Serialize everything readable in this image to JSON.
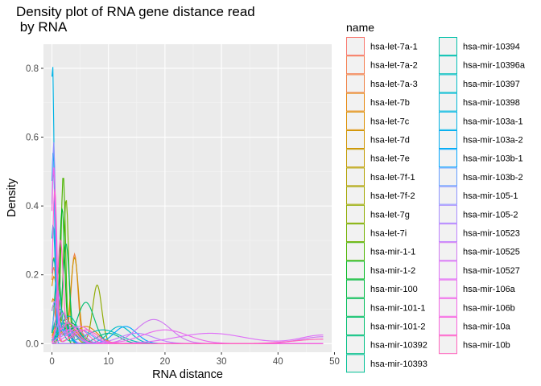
{
  "chart_data": {
    "type": "line",
    "title_line1": "Density plot of RNA gene distance read",
    "title_line2": " by RNA",
    "xlabel": "RNA distance",
    "ylabel": "Density",
    "xlim": [
      -1.5,
      49.5
    ],
    "ylim": [
      -0.025,
      0.87
    ],
    "x_ticks": [
      0,
      10,
      20,
      30,
      40,
      50
    ],
    "x_tick_labels": [
      "0",
      "10",
      "20",
      "30",
      "40",
      "50"
    ],
    "y_ticks": [
      0.0,
      0.2,
      0.4,
      0.6,
      0.8
    ],
    "y_tick_labels": [
      "0.0",
      "0.2",
      "0.4",
      "0.6",
      "0.8"
    ],
    "grid": true,
    "legend_position": "right",
    "legend_title": "name",
    "series": [
      {
        "name": "hsa-let-7a-1",
        "color": "#F8766D",
        "peaks": [
          [
            1.2,
            0.05,
            0.8
          ],
          [
            4,
            0.04,
            1.5
          ]
        ]
      },
      {
        "name": "hsa-let-7a-2",
        "color": "#F47D4F",
        "peaks": [
          [
            0.3,
            0.21,
            0.5
          ],
          [
            3,
            0.03,
            2
          ]
        ]
      },
      {
        "name": "hsa-let-7a-3",
        "color": "#EE8043",
        "peaks": [
          [
            4,
            0.26,
            0.6
          ],
          [
            1.5,
            0.04,
            0.8
          ]
        ]
      },
      {
        "name": "hsa-let-7b",
        "color": "#E5860D",
        "peaks": [
          [
            0.2,
            0.13,
            0.5
          ],
          [
            6,
            0.05,
            2
          ]
        ]
      },
      {
        "name": "hsa-let-7c",
        "color": "#DB8E00",
        "peaks": [
          [
            0.3,
            0.18,
            0.6
          ],
          [
            2,
            0.06,
            1
          ]
        ]
      },
      {
        "name": "hsa-let-7d",
        "color": "#CF9400",
        "peaks": [
          [
            4,
            0.25,
            0.7
          ],
          [
            1,
            0.05,
            0.8
          ]
        ]
      },
      {
        "name": "hsa-let-7e",
        "color": "#C19A00",
        "peaks": [
          [
            2.5,
            0.07,
            1.2
          ],
          [
            0.2,
            0.1,
            0.4
          ]
        ]
      },
      {
        "name": "hsa-let-7f-1",
        "color": "#B2A000",
        "peaks": [
          [
            0.3,
            0.24,
            0.5
          ],
          [
            3,
            0.05,
            1.5
          ]
        ]
      },
      {
        "name": "hsa-let-7f-2",
        "color": "#A3A500",
        "peaks": [
          [
            1.5,
            0.07,
            1.2
          ]
        ]
      },
      {
        "name": "hsa-let-7g",
        "color": "#8EAB00",
        "peaks": [
          [
            8,
            0.17,
            0.8
          ],
          [
            3,
            0.04,
            1.5
          ]
        ]
      },
      {
        "name": "hsa-let-7i",
        "color": "#72B000",
        "peaks": [
          [
            2.5,
            0.42,
            0.45
          ],
          [
            0.5,
            0.05,
            0.6
          ]
        ]
      },
      {
        "name": "hsa-mir-1-1",
        "color": "#4CB400",
        "peaks": [
          [
            2,
            0.49,
            0.4
          ]
        ]
      },
      {
        "name": "hsa-mir-1-2",
        "color": "#00B81F",
        "peaks": [
          [
            1.8,
            0.39,
            0.45
          ],
          [
            4,
            0.05,
            1
          ]
        ]
      },
      {
        "name": "hsa-mir-100",
        "color": "#00BA42",
        "peaks": [
          [
            1,
            0.22,
            0.5
          ],
          [
            3.5,
            0.06,
            1.2
          ]
        ]
      },
      {
        "name": "hsa-mir-101-1",
        "color": "#00BC5A",
        "peaks": [
          [
            2.5,
            0.29,
            0.6
          ],
          [
            0.5,
            0.05,
            0.5
          ]
        ]
      },
      {
        "name": "hsa-mir-101-2",
        "color": "#00BE70",
        "peaks": [
          [
            6,
            0.12,
            1.5
          ],
          [
            1.5,
            0.06,
            0.8
          ]
        ]
      },
      {
        "name": "hsa-mir-10392",
        "color": "#00BF84",
        "peaks": [
          [
            1.5,
            0.1,
            1
          ],
          [
            10,
            0.03,
            2
          ]
        ]
      },
      {
        "name": "hsa-mir-10393",
        "color": "#00C096",
        "peaks": [
          [
            0.3,
            0.23,
            0.5
          ],
          [
            2.5,
            0.05,
            1.5
          ]
        ]
      },
      {
        "name": "hsa-mir-10394",
        "color": "#00C0A8",
        "peaks": [
          [
            3,
            0.08,
            1.5
          ]
        ]
      },
      {
        "name": "hsa-mir-10396a",
        "color": "#00BFB8",
        "peaks": [
          [
            9,
            0.04,
            3
          ],
          [
            1,
            0.07,
            0.8
          ]
        ]
      },
      {
        "name": "hsa-mir-10397",
        "color": "#00BCC8",
        "peaks": [
          [
            12,
            0.05,
            2
          ],
          [
            2,
            0.06,
            1
          ]
        ]
      },
      {
        "name": "hsa-mir-10398",
        "color": "#00B8D7",
        "peaks": [
          [
            0.2,
            0.34,
            0.4
          ],
          [
            3,
            0.04,
            1.5
          ]
        ]
      },
      {
        "name": "hsa-mir-103a-1",
        "color": "#00B3E5",
        "peaks": [
          [
            0.1,
            0.82,
            0.3
          ]
        ]
      },
      {
        "name": "hsa-mir-103a-2",
        "color": "#00ACF2",
        "peaks": [
          [
            0.2,
            0.55,
            0.35
          ],
          [
            2,
            0.04,
            1
          ]
        ]
      },
      {
        "name": "hsa-mir-103b-1",
        "color": "#00A5FF",
        "peaks": [
          [
            13,
            0.05,
            2
          ],
          [
            2,
            0.04,
            1
          ]
        ]
      },
      {
        "name": "hsa-mir-103b-2",
        "color": "#619CFF",
        "peaks": [
          [
            1,
            0.15,
            0.6
          ],
          [
            5,
            0.04,
            2
          ]
        ]
      },
      {
        "name": "hsa-mir-105-1",
        "color": "#8B93FF",
        "peaks": [
          [
            0.3,
            0.58,
            0.35
          ],
          [
            3,
            0.03,
            1.5
          ]
        ]
      },
      {
        "name": "hsa-mir-105-2",
        "color": "#A88BFF",
        "peaks": [
          [
            0.5,
            0.12,
            0.7
          ],
          [
            4,
            0.05,
            1.5
          ]
        ]
      },
      {
        "name": "hsa-mir-10523",
        "color": "#BE80FF",
        "peaks": [
          [
            2,
            0.09,
            1
          ],
          [
            15,
            0.03,
            3
          ]
        ]
      },
      {
        "name": "hsa-mir-10525",
        "color": "#D078F2",
        "peaks": [
          [
            18,
            0.07,
            3
          ],
          [
            48,
            0.02,
            4
          ]
        ]
      },
      {
        "name": "hsa-mir-10527",
        "color": "#DF70F8",
        "peaks": [
          [
            28,
            0.03,
            6
          ],
          [
            48,
            0.025,
            4
          ],
          [
            3,
            0.04,
            1.5
          ]
        ]
      },
      {
        "name": "hsa-mir-106a",
        "color": "#EA6AEE",
        "peaks": [
          [
            20,
            0.04,
            4
          ],
          [
            5,
            0.05,
            2
          ]
        ]
      },
      {
        "name": "hsa-mir-106b",
        "color": "#F365E6",
        "peaks": [
          [
            0.3,
            0.5,
            0.4
          ],
          [
            3,
            0.06,
            1.5
          ]
        ]
      },
      {
        "name": "hsa-mir-10a",
        "color": "#FA62DB",
        "peaks": [
          [
            0.5,
            0.45,
            0.4
          ],
          [
            5,
            0.04,
            1.5
          ]
        ]
      },
      {
        "name": "hsa-mir-10b",
        "color": "#FF62BC",
        "peaks": [
          [
            1.5,
            0.3,
            0.5
          ],
          [
            48,
            0.013,
            5
          ],
          [
            6,
            0.04,
            2
          ]
        ]
      }
    ]
  }
}
